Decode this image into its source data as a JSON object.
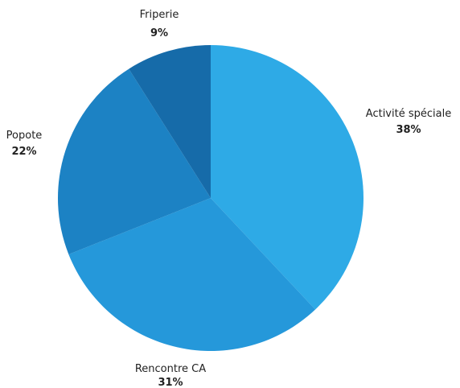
{
  "chart_data": {
    "type": "pie",
    "title": "",
    "slices": [
      {
        "label": "Activité spéciale",
        "value": 38,
        "value_label": "38%",
        "color": "#2eaae6"
      },
      {
        "label": "Rencontre CA",
        "value": 31,
        "value_label": "31%",
        "color": "#2598da"
      },
      {
        "label": "Popote",
        "value": 22,
        "value_label": "22%",
        "color": "#1c82c4"
      },
      {
        "label": "Friperie",
        "value": 9,
        "value_label": "9%",
        "color": "#166ba9"
      }
    ],
    "start_angle": "top (12 o'clock)",
    "direction": "clockwise",
    "legend": "none",
    "labels": "outside"
  }
}
